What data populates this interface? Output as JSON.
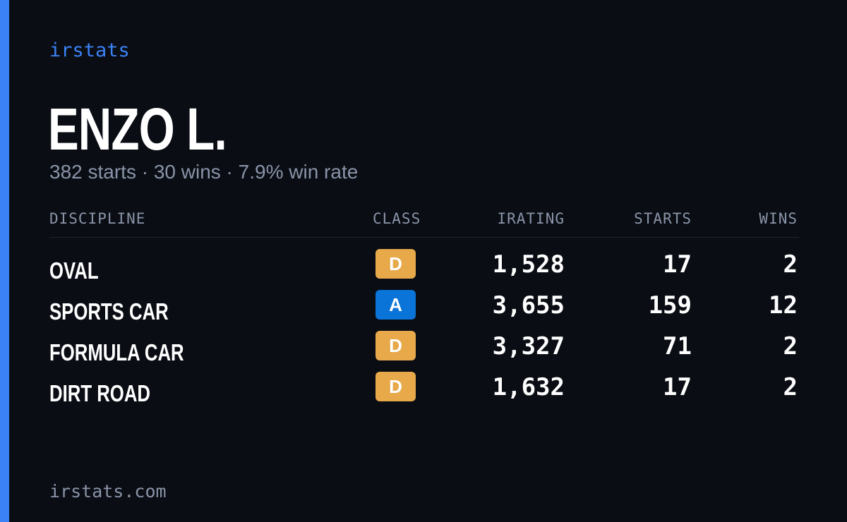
{
  "brand": "irstats",
  "driver": {
    "name": "ENZO L.",
    "summary": "382 starts · 30 wins · 7.9% win rate"
  },
  "table": {
    "headers": {
      "discipline": "DISCIPLINE",
      "class": "CLASS",
      "irating": "IRATING",
      "starts": "STARTS",
      "wins": "WINS"
    },
    "rows": [
      {
        "discipline": "OVAL",
        "class": "D",
        "class_color": "#e8a94a",
        "irating": "1,528",
        "starts": "17",
        "wins": "2"
      },
      {
        "discipline": "SPORTS CAR",
        "class": "A",
        "class_color": "#0a74d8",
        "irating": "3,655",
        "starts": "159",
        "wins": "12"
      },
      {
        "discipline": "FORMULA CAR",
        "class": "D",
        "class_color": "#e8a94a",
        "irating": "3,327",
        "starts": "71",
        "wins": "2"
      },
      {
        "discipline": "DIRT ROAD",
        "class": "D",
        "class_color": "#e8a94a",
        "irating": "1,632",
        "starts": "17",
        "wins": "2"
      }
    ]
  },
  "footer": {
    "url": "irstats.com"
  },
  "colors": {
    "accent": "#3b82f6",
    "background": "#0a0d14",
    "muted_text": "#8a94a8"
  }
}
